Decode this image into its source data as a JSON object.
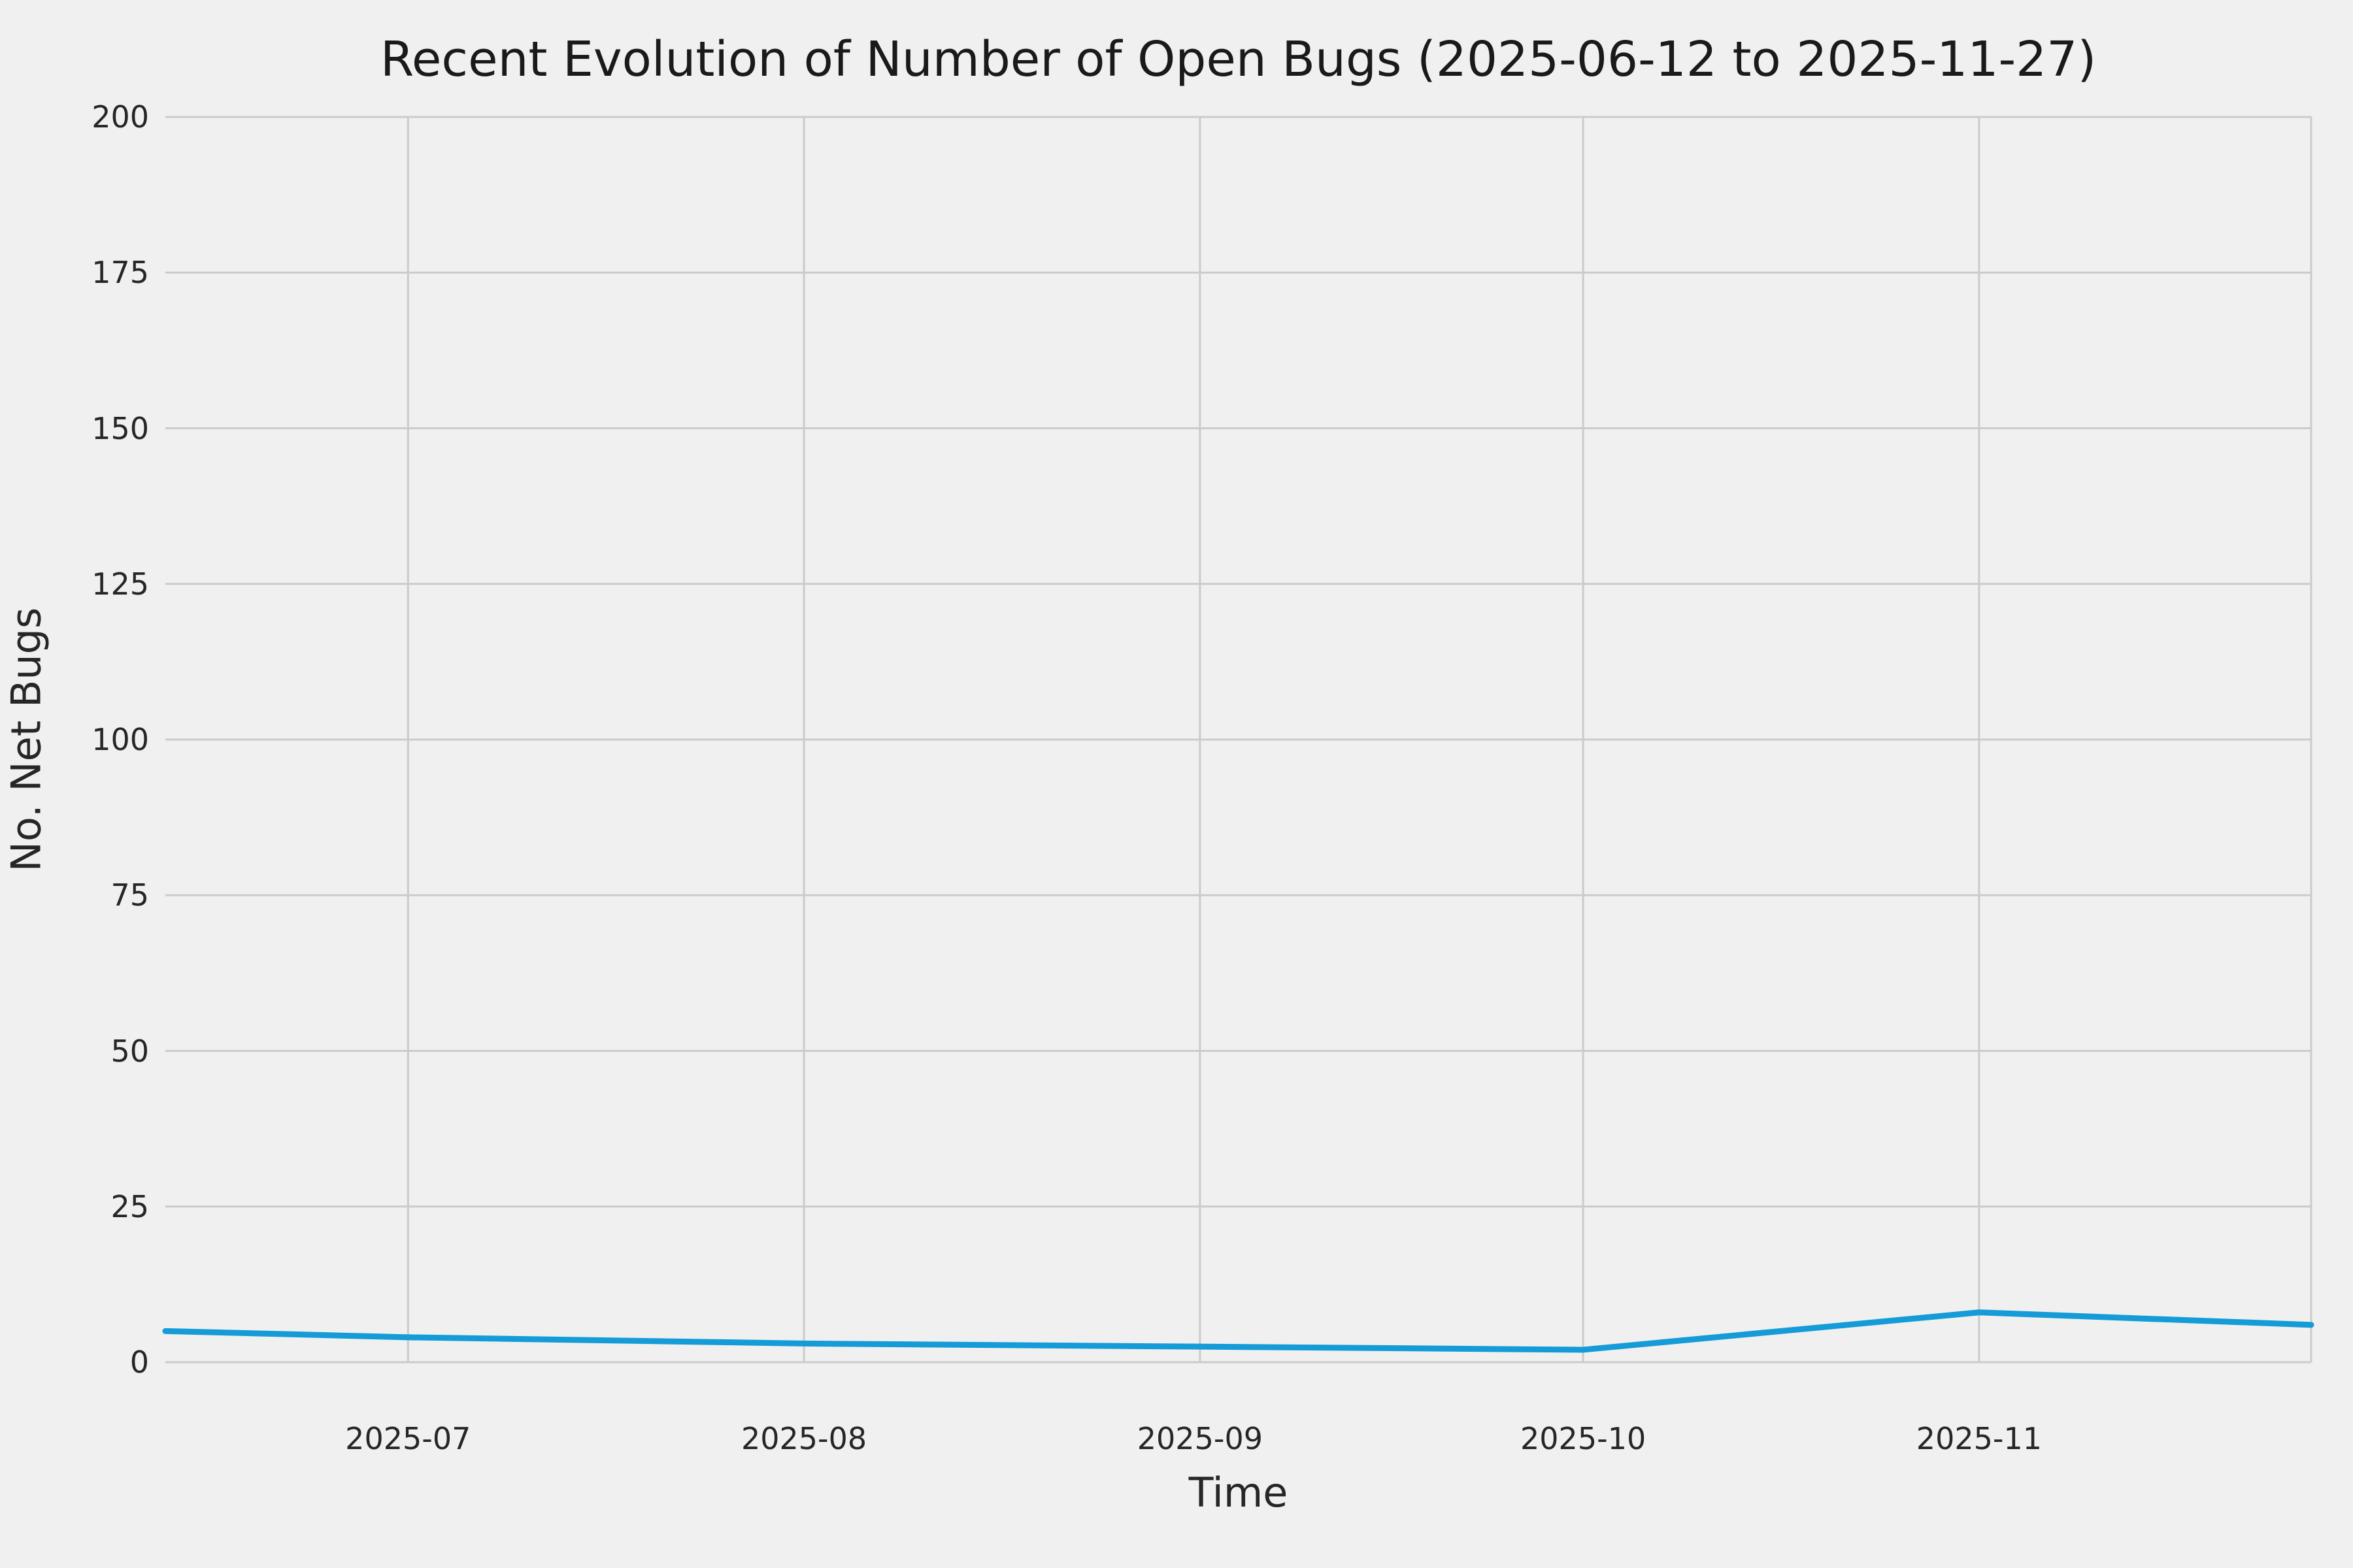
{
  "chart_data": {
    "type": "line",
    "title": "Recent Evolution of Number of Open Bugs (2025-06-12 to 2025-11-27)",
    "xlabel": "Time",
    "ylabel": "No. Net Bugs",
    "background_color": "#f0f0f0",
    "grid_color": "#cbcbcb",
    "grid": true,
    "legend": "none",
    "ylim": [
      0,
      200
    ],
    "y_ticks": [
      0,
      25,
      50,
      75,
      100,
      125,
      150,
      175,
      200
    ],
    "x_ticks": [
      {
        "label": "2025-07",
        "day": 19
      },
      {
        "label": "2025-08",
        "day": 50
      },
      {
        "label": "2025-09",
        "day": 81
      },
      {
        "label": "2025-10",
        "day": 111
      },
      {
        "label": "2025-11",
        "day": 142
      }
    ],
    "x_range": {
      "start_date": "2025-06-12",
      "end_date": "2025-11-27",
      "days": [
        0,
        168
      ]
    },
    "series": [
      {
        "name": "open-bugs",
        "color": "#149bd8",
        "line_width": 9,
        "points": [
          {
            "date": "2025-06-12",
            "day": 0,
            "value": 5
          },
          {
            "date": "2025-07-01",
            "day": 19,
            "value": 4
          },
          {
            "date": "2025-08-01",
            "day": 50,
            "value": 3
          },
          {
            "date": "2025-09-01",
            "day": 81,
            "value": 2.5
          },
          {
            "date": "2025-10-01",
            "day": 111,
            "value": 2
          },
          {
            "date": "2025-11-01",
            "day": 142,
            "value": 8
          },
          {
            "date": "2025-11-27",
            "day": 168,
            "value": 6
          }
        ]
      }
    ]
  }
}
